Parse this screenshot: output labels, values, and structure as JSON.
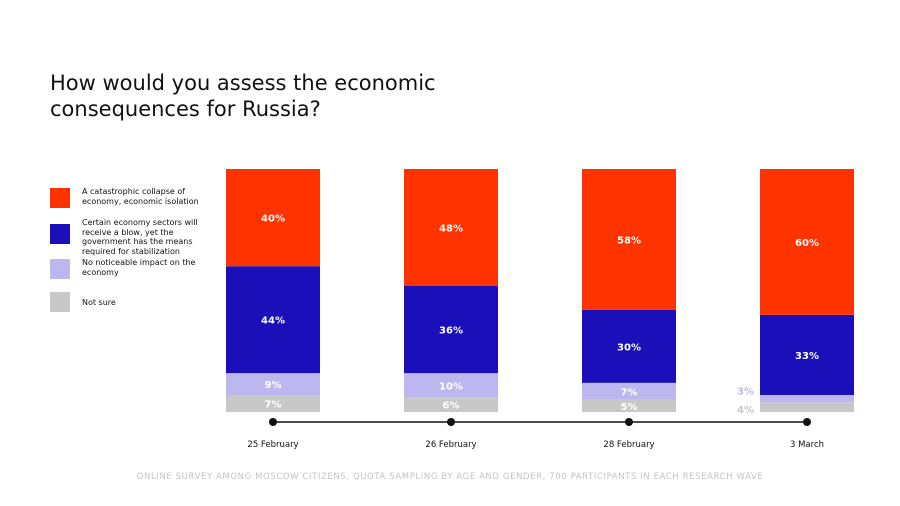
{
  "title": "How would you assess the economic consequences for Russia?",
  "legend": [
    {
      "label": "A catastrophic collapse of economy, economic isolation",
      "color": "#ff3300"
    },
    {
      "label": "Certain economy sectors will receive a blow, yet the government has the means required for stabilization",
      "color": "#1a0fb8"
    },
    {
      "label": "No noticeable impact on the economy",
      "color": "#bcb7ee"
    },
    {
      "label": "Not sure",
      "color": "#c8c8c8"
    }
  ],
  "chart_data": {
    "type": "bar",
    "stacked": true,
    "categories": [
      "25 February",
      "26 February",
      "28 February",
      "3 March"
    ],
    "series": [
      {
        "name": "A catastrophic collapse of economy, economic isolation",
        "values": [
          40,
          48,
          58,
          60
        ],
        "labels": [
          "40%",
          "48%",
          "58%",
          "60%"
        ]
      },
      {
        "name": "Certain economy sectors will receive a blow, yet the government has the means required for stabilization",
        "values": [
          44,
          36,
          30,
          33
        ],
        "labels": [
          "44%",
          "36%",
          "30%",
          "33%"
        ]
      },
      {
        "name": "No noticeable impact on the economy",
        "values": [
          9,
          10,
          7,
          3
        ],
        "labels": [
          "9%",
          "10%",
          "7%",
          "3%"
        ]
      },
      {
        "name": "Not sure",
        "values": [
          7,
          6,
          5,
          4
        ],
        "labels": [
          "7%",
          "6%",
          "5%",
          "4%"
        ]
      }
    ],
    "colors": [
      "#ff3300",
      "#1a0fb8",
      "#bcb7ee",
      "#c8c8c8"
    ],
    "ylim": [
      0,
      100
    ],
    "grid": false,
    "legend_position": "left"
  },
  "footnote": "ONLINE SURVEY AMONG MOSCOW CITIZENS, QUOTA SAMPLING BY AGE AND GENDER, 700 PARTICIPANTS IN EACH RESEARCH WAVE"
}
